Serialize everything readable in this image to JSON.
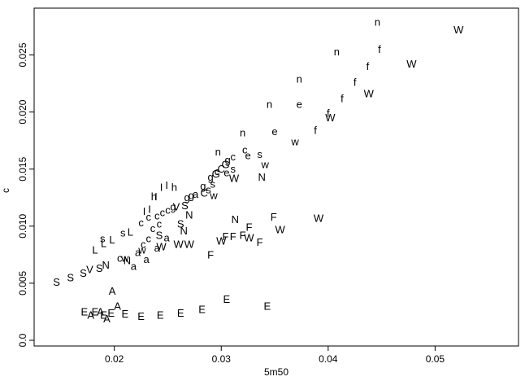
{
  "chart_data": {
    "type": "scatter",
    "title": "",
    "xlabel": "5m50",
    "ylabel": "c",
    "xlim": [
      0.0125,
      0.0578
    ],
    "ylim": [
      -0.0005,
      0.0291
    ],
    "xticks": [
      {
        "value": 0.02,
        "label": "0.02"
      },
      {
        "value": 0.03,
        "label": "0.03"
      },
      {
        "value": 0.04,
        "label": "0.04"
      },
      {
        "value": 0.05,
        "label": "0.05"
      }
    ],
    "yticks": [
      {
        "value": 0.0,
        "label": "0.0"
      },
      {
        "value": 0.005,
        "label": "0.005"
      },
      {
        "value": 0.01,
        "label": "0.010"
      },
      {
        "value": 0.015,
        "label": "0.015"
      },
      {
        "value": 0.02,
        "label": "0.020"
      },
      {
        "value": 0.025,
        "label": "0.025"
      }
    ],
    "grid": false,
    "marker": "text",
    "points": [
      {
        "x": 0.0146,
        "y": 0.0051,
        "label": "S"
      },
      {
        "x": 0.0159,
        "y": 0.0055,
        "label": "S"
      },
      {
        "x": 0.0171,
        "y": 0.0059,
        "label": "S"
      },
      {
        "x": 0.0177,
        "y": 0.0062,
        "label": "V"
      },
      {
        "x": 0.0186,
        "y": 0.0063,
        "label": "S"
      },
      {
        "x": 0.0192,
        "y": 0.0066,
        "label": "N"
      },
      {
        "x": 0.0182,
        "y": 0.0079,
        "label": "L"
      },
      {
        "x": 0.019,
        "y": 0.0085,
        "label": "L"
      },
      {
        "x": 0.0189,
        "y": 0.0089,
        "label": "s"
      },
      {
        "x": 0.0198,
        "y": 0.0088,
        "label": "L"
      },
      {
        "x": 0.0208,
        "y": 0.0094,
        "label": "s"
      },
      {
        "x": 0.0215,
        "y": 0.0095,
        "label": "L"
      },
      {
        "x": 0.0205,
        "y": 0.0072,
        "label": "c"
      },
      {
        "x": 0.021,
        "y": 0.0072,
        "label": "w"
      },
      {
        "x": 0.0212,
        "y": 0.007,
        "label": "N"
      },
      {
        "x": 0.0218,
        "y": 0.0065,
        "label": "a"
      },
      {
        "x": 0.0222,
        "y": 0.0077,
        "label": "a"
      },
      {
        "x": 0.0226,
        "y": 0.0079,
        "label": "w"
      },
      {
        "x": 0.023,
        "y": 0.0071,
        "label": "a"
      },
      {
        "x": 0.0232,
        "y": 0.0089,
        "label": "c"
      },
      {
        "x": 0.024,
        "y": 0.0081,
        "label": "a"
      },
      {
        "x": 0.0244,
        "y": 0.0082,
        "label": "W"
      },
      {
        "x": 0.0227,
        "y": 0.0084,
        "label": "c"
      },
      {
        "x": 0.0242,
        "y": 0.0092,
        "label": "S"
      },
      {
        "x": 0.0249,
        "y": 0.009,
        "label": "a"
      },
      {
        "x": 0.026,
        "y": 0.0084,
        "label": "W"
      },
      {
        "x": 0.0236,
        "y": 0.0098,
        "label": "c"
      },
      {
        "x": 0.0242,
        "y": 0.0102,
        "label": "c"
      },
      {
        "x": 0.0225,
        "y": 0.0103,
        "label": "c"
      },
      {
        "x": 0.0232,
        "y": 0.0108,
        "label": "c"
      },
      {
        "x": 0.024,
        "y": 0.0109,
        "label": "c"
      },
      {
        "x": 0.0245,
        "y": 0.0112,
        "label": "c"
      },
      {
        "x": 0.025,
        "y": 0.0114,
        "label": "c"
      },
      {
        "x": 0.0255,
        "y": 0.0117,
        "label": "g"
      },
      {
        "x": 0.0262,
        "y": 0.0102,
        "label": "S"
      },
      {
        "x": 0.0265,
        "y": 0.0096,
        "label": "N"
      },
      {
        "x": 0.0228,
        "y": 0.0113,
        "label": "I"
      },
      {
        "x": 0.0233,
        "y": 0.0115,
        "label": "I"
      },
      {
        "x": 0.0237,
        "y": 0.0126,
        "label": "h"
      },
      {
        "x": 0.0239,
        "y": 0.0126,
        "label": "I"
      },
      {
        "x": 0.0244,
        "y": 0.0134,
        "label": "I"
      },
      {
        "x": 0.0249,
        "y": 0.0136,
        "label": "I"
      },
      {
        "x": 0.0256,
        "y": 0.0134,
        "label": "h"
      },
      {
        "x": 0.0258,
        "y": 0.0117,
        "label": "V"
      },
      {
        "x": 0.0266,
        "y": 0.0118,
        "label": "S"
      },
      {
        "x": 0.027,
        "y": 0.011,
        "label": "N"
      },
      {
        "x": 0.0268,
        "y": 0.0125,
        "label": "g"
      },
      {
        "x": 0.0272,
        "y": 0.0127,
        "label": "g"
      },
      {
        "x": 0.0276,
        "y": 0.0128,
        "label": "a"
      },
      {
        "x": 0.0284,
        "y": 0.0129,
        "label": "C"
      },
      {
        "x": 0.0288,
        "y": 0.0132,
        "label": "s"
      },
      {
        "x": 0.0283,
        "y": 0.0135,
        "label": "g"
      },
      {
        "x": 0.0292,
        "y": 0.0137,
        "label": "s"
      },
      {
        "x": 0.029,
        "y": 0.0143,
        "label": "g"
      },
      {
        "x": 0.0295,
        "y": 0.0146,
        "label": "G"
      },
      {
        "x": 0.0293,
        "y": 0.0127,
        "label": "w"
      },
      {
        "x": 0.0296,
        "y": 0.0148,
        "label": "c"
      },
      {
        "x": 0.03,
        "y": 0.015,
        "label": "C"
      },
      {
        "x": 0.0304,
        "y": 0.0154,
        "label": "G"
      },
      {
        "x": 0.0305,
        "y": 0.0147,
        "label": "e"
      },
      {
        "x": 0.0311,
        "y": 0.015,
        "label": "s"
      },
      {
        "x": 0.0312,
        "y": 0.0142,
        "label": "W"
      },
      {
        "x": 0.0306,
        "y": 0.0158,
        "label": "g"
      },
      {
        "x": 0.0311,
        "y": 0.0161,
        "label": "c"
      },
      {
        "x": 0.0297,
        "y": 0.0165,
        "label": "n"
      },
      {
        "x": 0.0322,
        "y": 0.0167,
        "label": "c"
      },
      {
        "x": 0.0325,
        "y": 0.0162,
        "label": "e"
      },
      {
        "x": 0.0336,
        "y": 0.0163,
        "label": "s"
      },
      {
        "x": 0.0341,
        "y": 0.0154,
        "label": "w"
      },
      {
        "x": 0.0313,
        "y": 0.0106,
        "label": "N"
      },
      {
        "x": 0.0338,
        "y": 0.0143,
        "label": "N"
      },
      {
        "x": 0.032,
        "y": 0.0182,
        "label": "n"
      },
      {
        "x": 0.0345,
        "y": 0.0207,
        "label": "n"
      },
      {
        "x": 0.035,
        "y": 0.0183,
        "label": "e"
      },
      {
        "x": 0.0373,
        "y": 0.0229,
        "label": "n"
      },
      {
        "x": 0.0373,
        "y": 0.0207,
        "label": "e"
      },
      {
        "x": 0.0408,
        "y": 0.0253,
        "label": "n"
      },
      {
        "x": 0.0446,
        "y": 0.0279,
        "label": "n"
      },
      {
        "x": 0.0369,
        "y": 0.0174,
        "label": "w"
      },
      {
        "x": 0.0388,
        "y": 0.0184,
        "label": "f"
      },
      {
        "x": 0.04,
        "y": 0.0199,
        "label": "f"
      },
      {
        "x": 0.0402,
        "y": 0.0195,
        "label": "W"
      },
      {
        "x": 0.0413,
        "y": 0.0212,
        "label": "f"
      },
      {
        "x": 0.0425,
        "y": 0.0226,
        "label": "f"
      },
      {
        "x": 0.0437,
        "y": 0.024,
        "label": "f"
      },
      {
        "x": 0.0448,
        "y": 0.0255,
        "label": "f"
      },
      {
        "x": 0.0438,
        "y": 0.0216,
        "label": "W"
      },
      {
        "x": 0.0478,
        "y": 0.0242,
        "label": "W"
      },
      {
        "x": 0.0522,
        "y": 0.0272,
        "label": "W"
      },
      {
        "x": 0.027,
        "y": 0.0084,
        "label": "W"
      },
      {
        "x": 0.029,
        "y": 0.0075,
        "label": "F"
      },
      {
        "x": 0.03,
        "y": 0.0087,
        "label": "W"
      },
      {
        "x": 0.0304,
        "y": 0.0091,
        "label": "F"
      },
      {
        "x": 0.0311,
        "y": 0.0091,
        "label": "F"
      },
      {
        "x": 0.032,
        "y": 0.0092,
        "label": "F"
      },
      {
        "x": 0.0326,
        "y": 0.0099,
        "label": "F"
      },
      {
        "x": 0.0326,
        "y": 0.009,
        "label": "W"
      },
      {
        "x": 0.0336,
        "y": 0.0086,
        "label": "F"
      },
      {
        "x": 0.0349,
        "y": 0.0108,
        "label": "F"
      },
      {
        "x": 0.0355,
        "y": 0.0097,
        "label": "W"
      },
      {
        "x": 0.0391,
        "y": 0.0107,
        "label": "W"
      },
      {
        "x": 0.0198,
        "y": 0.0043,
        "label": "A"
      },
      {
        "x": 0.0203,
        "y": 0.003,
        "label": "A"
      },
      {
        "x": 0.0172,
        "y": 0.0025,
        "label": "E"
      },
      {
        "x": 0.0178,
        "y": 0.0022,
        "label": "A"
      },
      {
        "x": 0.0182,
        "y": 0.0025,
        "label": "E"
      },
      {
        "x": 0.0187,
        "y": 0.0025,
        "label": "A"
      },
      {
        "x": 0.019,
        "y": 0.0022,
        "label": "E"
      },
      {
        "x": 0.0193,
        "y": 0.0019,
        "label": "A"
      },
      {
        "x": 0.0197,
        "y": 0.0024,
        "label": "E"
      },
      {
        "x": 0.021,
        "y": 0.0023,
        "label": "E"
      },
      {
        "x": 0.0225,
        "y": 0.0021,
        "label": "E"
      },
      {
        "x": 0.0243,
        "y": 0.0022,
        "label": "E"
      },
      {
        "x": 0.0262,
        "y": 0.0024,
        "label": "E"
      },
      {
        "x": 0.0282,
        "y": 0.0027,
        "label": "E"
      },
      {
        "x": 0.0305,
        "y": 0.0036,
        "label": "E"
      },
      {
        "x": 0.0343,
        "y": 0.003,
        "label": "E"
      }
    ]
  }
}
